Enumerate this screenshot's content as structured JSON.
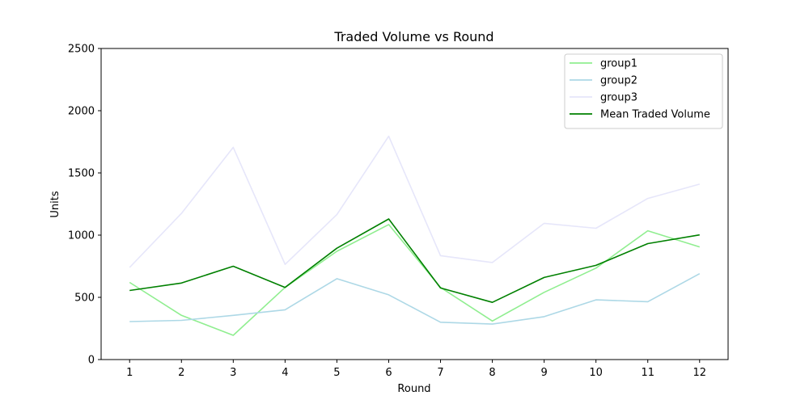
{
  "chart_data": {
    "type": "line",
    "title": "Traded Volume vs Round",
    "xlabel": "Round",
    "ylabel": "Units",
    "x": [
      1,
      2,
      3,
      4,
      5,
      6,
      7,
      8,
      9,
      10,
      11,
      12
    ],
    "ylim": [
      0,
      2500
    ],
    "yticks": [
      0,
      500,
      1000,
      1500,
      2000,
      2500
    ],
    "grid": false,
    "legend_position": "top-right",
    "series": [
      {
        "name": "group1",
        "color": "#90ee90",
        "values": [
          620,
          355,
          195,
          580,
          870,
          1085,
          580,
          310,
          540,
          735,
          1035,
          905
        ]
      },
      {
        "name": "group2",
        "color": "#add8e6",
        "values": [
          305,
          315,
          355,
          400,
          650,
          520,
          300,
          285,
          345,
          480,
          465,
          690
        ]
      },
      {
        "name": "group3",
        "color": "#e6e6fa",
        "values": [
          740,
          1175,
          1705,
          765,
          1165,
          1795,
          835,
          780,
          1095,
          1055,
          1295,
          1410
        ]
      },
      {
        "name": "Mean Traded Volume",
        "color": "#008000",
        "values": [
          555,
          615,
          750,
          580,
          895,
          1130,
          575,
          460,
          660,
          757,
          932,
          1002
        ]
      }
    ]
  }
}
